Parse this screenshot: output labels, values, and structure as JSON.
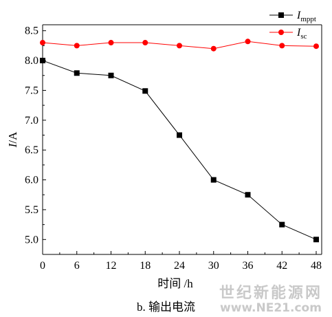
{
  "chart_data": {
    "type": "line",
    "xlabel": "时间 /h",
    "ylabel": "I/A",
    "ylabel_main": "I",
    "ylabel_rest": "/A",
    "x": [
      0,
      6,
      12,
      18,
      24,
      30,
      36,
      42,
      48
    ],
    "xlim": [
      0,
      48
    ],
    "ylim": [
      4.75,
      8.6
    ],
    "xticks": [
      0,
      6,
      12,
      18,
      24,
      30,
      36,
      42,
      48
    ],
    "yticks": [
      5.0,
      5.5,
      6.0,
      6.5,
      7.0,
      7.5,
      8.0,
      8.5
    ],
    "ytick_labels": [
      "5.0",
      "5.5",
      "6.0",
      "6.5",
      "7.0",
      "7.5",
      "8.0",
      "8.5"
    ],
    "grid": false,
    "legend_position": "top-right",
    "series": [
      {
        "name": "I_mppt",
        "legend_main": "I",
        "legend_sub": "mppt",
        "marker": "square",
        "color": "#000000",
        "values": [
          8.0,
          7.79,
          7.75,
          7.49,
          6.75,
          6.0,
          5.75,
          5.25,
          5.0
        ]
      },
      {
        "name": "I_sc",
        "legend_main": "I",
        "legend_sub": "sc",
        "marker": "circle",
        "color": "#ff0000",
        "values": [
          8.3,
          8.25,
          8.3,
          8.3,
          8.25,
          8.2,
          8.32,
          8.25,
          8.24
        ]
      }
    ]
  },
  "caption": "b. 输出电流",
  "watermark": {
    "cn": "世纪新能源网",
    "url": "www.NE21.com"
  }
}
